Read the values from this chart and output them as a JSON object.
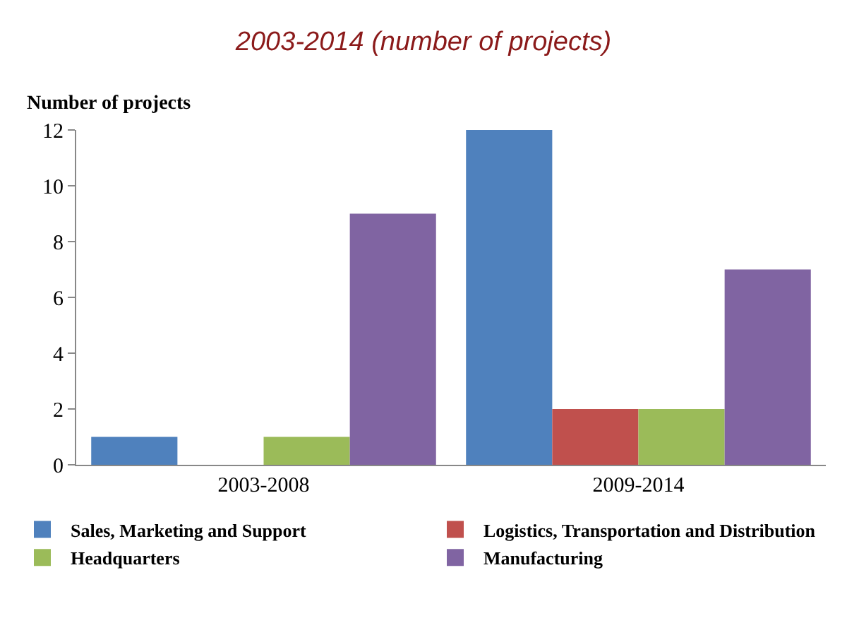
{
  "chart_data": {
    "type": "bar",
    "title": "2003-2014 (number of projects)",
    "ylabel": "Number of projects",
    "categories": [
      "2003-2008",
      "2009-2014"
    ],
    "series": [
      {
        "name": "Sales, Marketing and Support",
        "color": "#4f81bd",
        "values": [
          1,
          12
        ]
      },
      {
        "name": "Logistics, Transportation and Distribution",
        "color": "#c0504d",
        "values": [
          0,
          2
        ]
      },
      {
        "name": "Headquarters",
        "color": "#9bbb59",
        "values": [
          1,
          2
        ]
      },
      {
        "name": "Manufacturing",
        "color": "#8064a2",
        "values": [
          9,
          7
        ]
      }
    ],
    "ylim": [
      0,
      12
    ],
    "yticks": [
      0,
      2,
      4,
      6,
      8,
      10,
      12
    ],
    "legend": "bottom"
  }
}
